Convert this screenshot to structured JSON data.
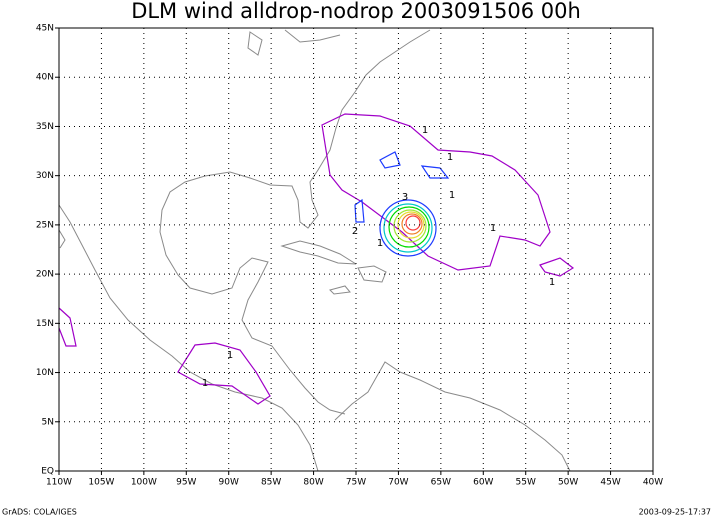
{
  "chart_data": {
    "type": "contour",
    "title": "DLM wind alldrop-nodrop 2003091506 00h",
    "footer_left": "GrADS: COLA/IGES",
    "footer_right": "2003-09-25-17:37",
    "xlim": [
      -110,
      -40
    ],
    "ylim": [
      0,
      45
    ],
    "xticks": [
      {
        "value": -110,
        "label": "110W"
      },
      {
        "value": -105,
        "label": "105W"
      },
      {
        "value": -100,
        "label": "100W"
      },
      {
        "value": -95,
        "label": "95W"
      },
      {
        "value": -90,
        "label": "90W"
      },
      {
        "value": -85,
        "label": "85W"
      },
      {
        "value": -80,
        "label": "80W"
      },
      {
        "value": -75,
        "label": "75W"
      },
      {
        "value": -70,
        "label": "70W"
      },
      {
        "value": -65,
        "label": "65W"
      },
      {
        "value": -60,
        "label": "60W"
      },
      {
        "value": -55,
        "label": "55W"
      },
      {
        "value": -50,
        "label": "50W"
      },
      {
        "value": -45,
        "label": "45W"
      },
      {
        "value": -40,
        "label": "40W"
      }
    ],
    "yticks": [
      {
        "value": 0,
        "label": "EQ"
      },
      {
        "value": 5,
        "label": "5N"
      },
      {
        "value": 10,
        "label": "10N"
      },
      {
        "value": 15,
        "label": "15N"
      },
      {
        "value": 20,
        "label": "20N"
      },
      {
        "value": 25,
        "label": "25N"
      },
      {
        "value": 30,
        "label": "30N"
      },
      {
        "value": 35,
        "label": "35N"
      },
      {
        "value": 40,
        "label": "40N"
      },
      {
        "value": 45,
        "label": "45N"
      }
    ],
    "grid": true,
    "contours": [
      {
        "level": 1,
        "color": "#a000c8"
      },
      {
        "level": 2,
        "color": "#1e3cff"
      },
      {
        "level": 3,
        "color": "#00c8c8"
      },
      {
        "level": 4,
        "color": "#00dc00"
      },
      {
        "level": 5,
        "color": "#a0e632"
      },
      {
        "level": 6,
        "color": "#e6dc32"
      },
      {
        "level": 7,
        "color": "#f08228"
      },
      {
        "level": 8,
        "color": "#fa3c3c"
      }
    ]
  }
}
